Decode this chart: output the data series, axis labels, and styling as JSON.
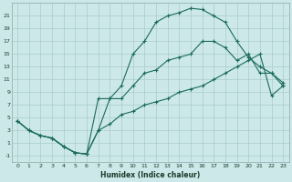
{
  "xlabel": "Humidex (Indice chaleur)",
  "bg_color": "#cce8e8",
  "grid_color": "#aacccc",
  "line_color": "#1a6b5a",
  "xlim": [
    -0.5,
    23.5
  ],
  "ylim": [
    -2,
    23
  ],
  "xticks": [
    0,
    1,
    2,
    3,
    4,
    5,
    6,
    7,
    8,
    9,
    10,
    11,
    12,
    13,
    14,
    15,
    16,
    17,
    18,
    19,
    20,
    21,
    22,
    23
  ],
  "yticks": [
    -1,
    1,
    3,
    5,
    7,
    9,
    11,
    13,
    15,
    17,
    19,
    21
  ],
  "line1_x": [
    0,
    1,
    2,
    3,
    4,
    5,
    6,
    7,
    8,
    9,
    10,
    11,
    12,
    13,
    14,
    15,
    16,
    17,
    18,
    19,
    20,
    21,
    22,
    23
  ],
  "line1_y": [
    4.5,
    3.0,
    2.2,
    1.8,
    0.5,
    -0.5,
    -0.7,
    8.0,
    8.0,
    10.0,
    15.0,
    17.0,
    20.0,
    21.0,
    21.5,
    22.2,
    22.0,
    21.0,
    20.0,
    17.0,
    14.5,
    13.0,
    12.0,
    10.0
  ],
  "line2_x": [
    0,
    1,
    2,
    3,
    4,
    5,
    6,
    7,
    8,
    9,
    10,
    11,
    12,
    13,
    14,
    15,
    16,
    17,
    18,
    19,
    20,
    21,
    22,
    23
  ],
  "line2_y": [
    4.5,
    3.0,
    2.2,
    1.8,
    0.5,
    -0.5,
    -0.7,
    3.0,
    8.0,
    8.0,
    10.0,
    12.0,
    12.5,
    14.0,
    14.5,
    15.0,
    17.0,
    17.0,
    16.0,
    14.0,
    15.0,
    12.0,
    12.0,
    10.5
  ],
  "line3_x": [
    0,
    1,
    2,
    3,
    4,
    5,
    6,
    7,
    8,
    9,
    10,
    11,
    12,
    13,
    14,
    15,
    16,
    17,
    18,
    19,
    20,
    21,
    22,
    23
  ],
  "line3_y": [
    4.5,
    3.0,
    2.2,
    1.8,
    0.5,
    -0.5,
    -0.7,
    3.0,
    4.0,
    5.5,
    6.0,
    7.0,
    7.5,
    8.0,
    9.0,
    9.5,
    10.0,
    11.0,
    12.0,
    13.0,
    14.0,
    15.0,
    8.5,
    10.0
  ]
}
